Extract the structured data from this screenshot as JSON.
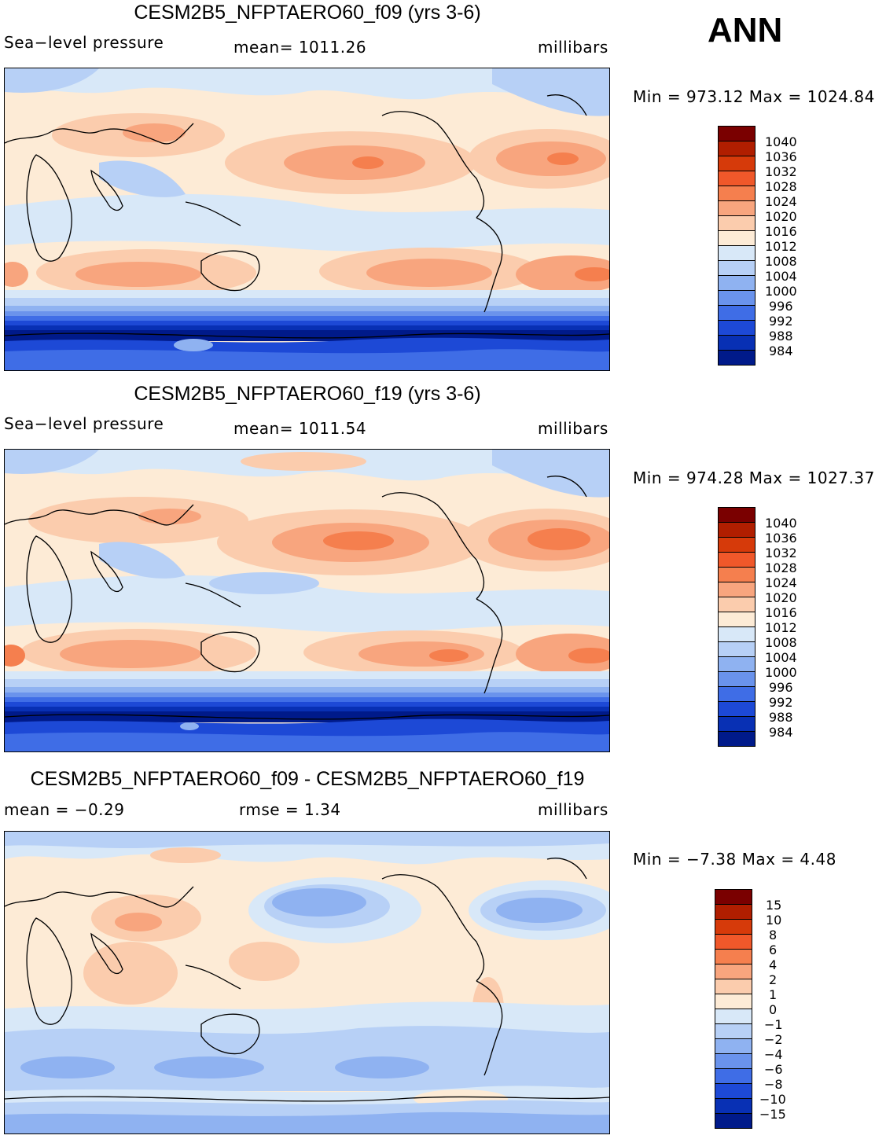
{
  "season": "ANN",
  "panels": [
    {
      "title": "CESM2B5_NFPTAERO60_f09 (yrs 3-6)",
      "left_label": "Sea−level pressure",
      "center_label": "mean=  1011.26",
      "units": "millibars",
      "minmax": "Min  =  973.12  Max  =  1024.84",
      "colorbar_labels": [
        "1040",
        "1036",
        "1032",
        "1028",
        "1024",
        "1020",
        "1016",
        "1012",
        "1008",
        "1004",
        "1000",
        "996",
        "992",
        "988",
        "984"
      ]
    },
    {
      "title": "CESM2B5_NFPTAERO60_f19 (yrs 3-6)",
      "left_label": "Sea−level pressure",
      "center_label": "mean=  1011.54",
      "units": "millibars",
      "minmax": "Min  =  974.28  Max  =  1027.37",
      "colorbar_labels": [
        "1040",
        "1036",
        "1032",
        "1028",
        "1024",
        "1020",
        "1016",
        "1012",
        "1008",
        "1004",
        "1000",
        "996",
        "992",
        "988",
        "984"
      ]
    },
    {
      "title": "CESM2B5_NFPTAERO60_f09 - CESM2B5_NFPTAERO60_f19",
      "left_label": "mean  =    −0.29",
      "center_label": "rmse  =     1.34",
      "units": "millibars",
      "minmax": "Min  =    −7.38  Max  =      4.48",
      "colorbar_labels": [
        "15",
        "10",
        "8",
        "6",
        "4",
        "2",
        "1",
        "0",
        "−1",
        "−2",
        "−4",
        "−6",
        "−8",
        "−10",
        "−15"
      ]
    }
  ],
  "colors": {
    "abs_scale": [
      "#7a0000",
      "#b01e00",
      "#d63a0a",
      "#f0582a",
      "#f57f4e",
      "#f8a57e",
      "#fbccad",
      "#fdebd6",
      "#d8e8f8",
      "#b7d0f6",
      "#8fb2f1",
      "#6a93ec",
      "#3f6de6",
      "#1d49d6",
      "#0830b4",
      "#001a8a"
    ],
    "diff_scale": [
      "#7a0000",
      "#b01e00",
      "#d63a0a",
      "#f0582a",
      "#f57f4e",
      "#f8a57e",
      "#fbccad",
      "#fdebd6",
      "#d8e8f8",
      "#b7d0f6",
      "#8fb2f1",
      "#6a93ec",
      "#3f6de6",
      "#1d49d6",
      "#0830b4",
      "#001a8a"
    ]
  }
}
